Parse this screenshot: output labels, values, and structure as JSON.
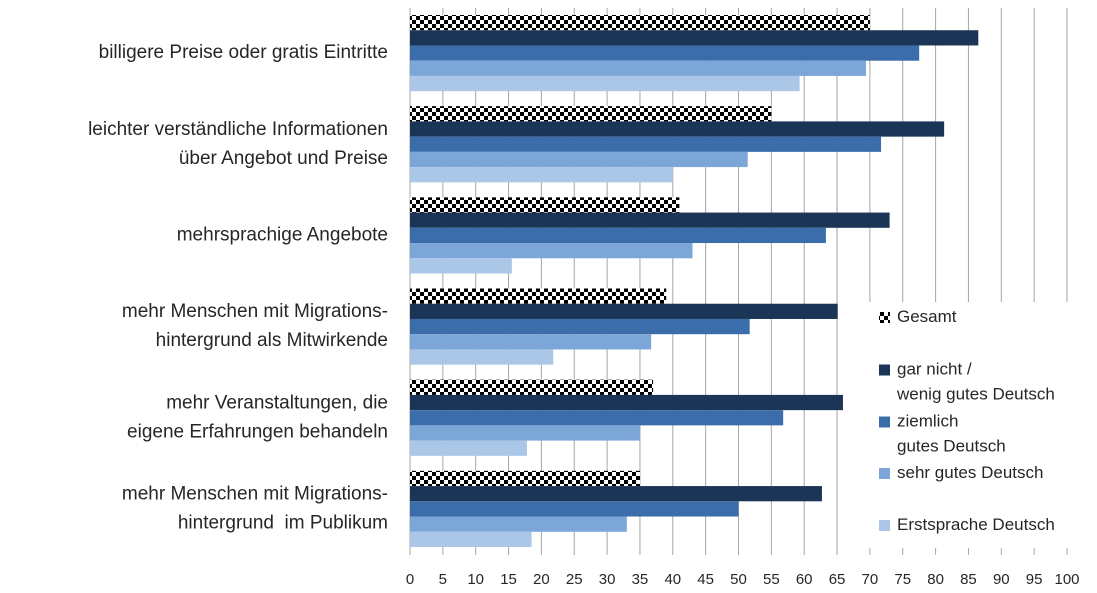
{
  "chart_data": {
    "type": "bar",
    "orientation": "horizontal",
    "categories": [
      "billigere Preise oder gratis Eintritte",
      "leichter verständliche Informationen\nüber Angebot und Preise",
      "mehrsprachige Angebote",
      "mehr Menschen mit Migrations-\nhintergrund als Mitwirkende",
      "mehr Veranstaltungen, die\neigene Erfahrungen behandeln",
      "mehr Menschen mit Migrations-\nhintergrund  im Publikum"
    ],
    "series": [
      {
        "name": "Gesamt",
        "color": "#000000",
        "pattern": "checker",
        "values": [
          70,
          55,
          41,
          39,
          37,
          35
        ]
      },
      {
        "name": "gar nicht /\nwenig gutes Deutsch",
        "color": "#1b3556",
        "values": [
          86.5,
          81.3,
          73,
          65.1,
          65.9,
          62.7
        ]
      },
      {
        "name": "ziemlich\ngutes Deutsch",
        "color": "#3b6dab",
        "values": [
          77.5,
          71.7,
          63.3,
          51.7,
          56.8,
          50
        ]
      },
      {
        "name": "sehr gutes Deutsch",
        "color": "#7ca6d8",
        "values": [
          69.4,
          51.4,
          43,
          36.7,
          35,
          33
        ]
      },
      {
        "name": "Erstsprache Deutsch",
        "color": "#abc7e8",
        "values": [
          59.3,
          40,
          15.5,
          21.8,
          17.8,
          18.5
        ]
      }
    ],
    "xlim": [
      0,
      100
    ],
    "xticks": [
      0,
      5,
      10,
      15,
      20,
      25,
      30,
      35,
      40,
      45,
      50,
      55,
      60,
      65,
      70,
      75,
      80,
      85,
      90,
      95,
      100
    ],
    "grid": true,
    "legend": "right"
  }
}
